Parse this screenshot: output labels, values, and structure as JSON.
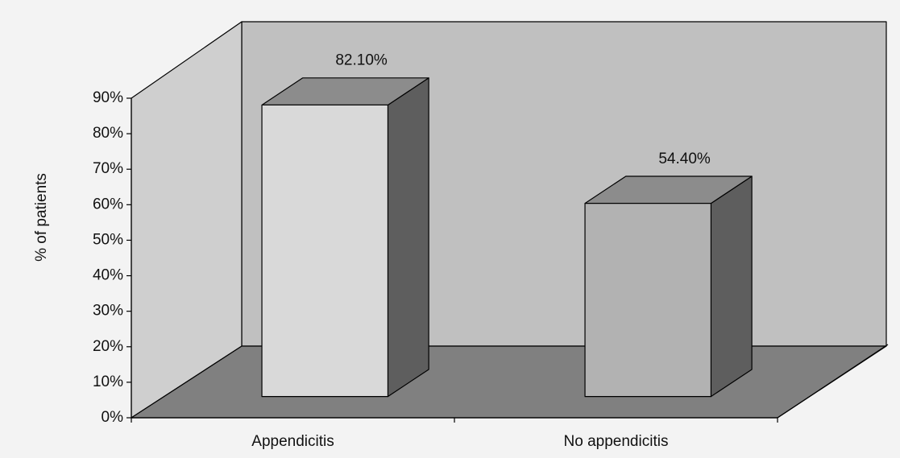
{
  "chart_data": {
    "type": "bar3d",
    "y_label": "% of patients",
    "categories": [
      "Appendicitis",
      "No appendicitis"
    ],
    "values": [
      82.1,
      54.4
    ],
    "value_labels": [
      "82.10%",
      "54.40%"
    ],
    "colors": [
      "#d9d9d9",
      "#b2b2b2"
    ],
    "ylim": [
      0,
      90
    ],
    "yticks": [
      {
        "value": 0,
        "label": "0%"
      },
      {
        "value": 10,
        "label": "10%"
      },
      {
        "value": 20,
        "label": "20%"
      },
      {
        "value": 30,
        "label": "30%"
      },
      {
        "value": 40,
        "label": "40%"
      },
      {
        "value": 50,
        "label": "50%"
      },
      {
        "value": 60,
        "label": "60%"
      },
      {
        "value": 70,
        "label": "70%"
      },
      {
        "value": 80,
        "label": "80%"
      },
      {
        "value": 90,
        "label": "90%"
      }
    ],
    "grid": false
  }
}
